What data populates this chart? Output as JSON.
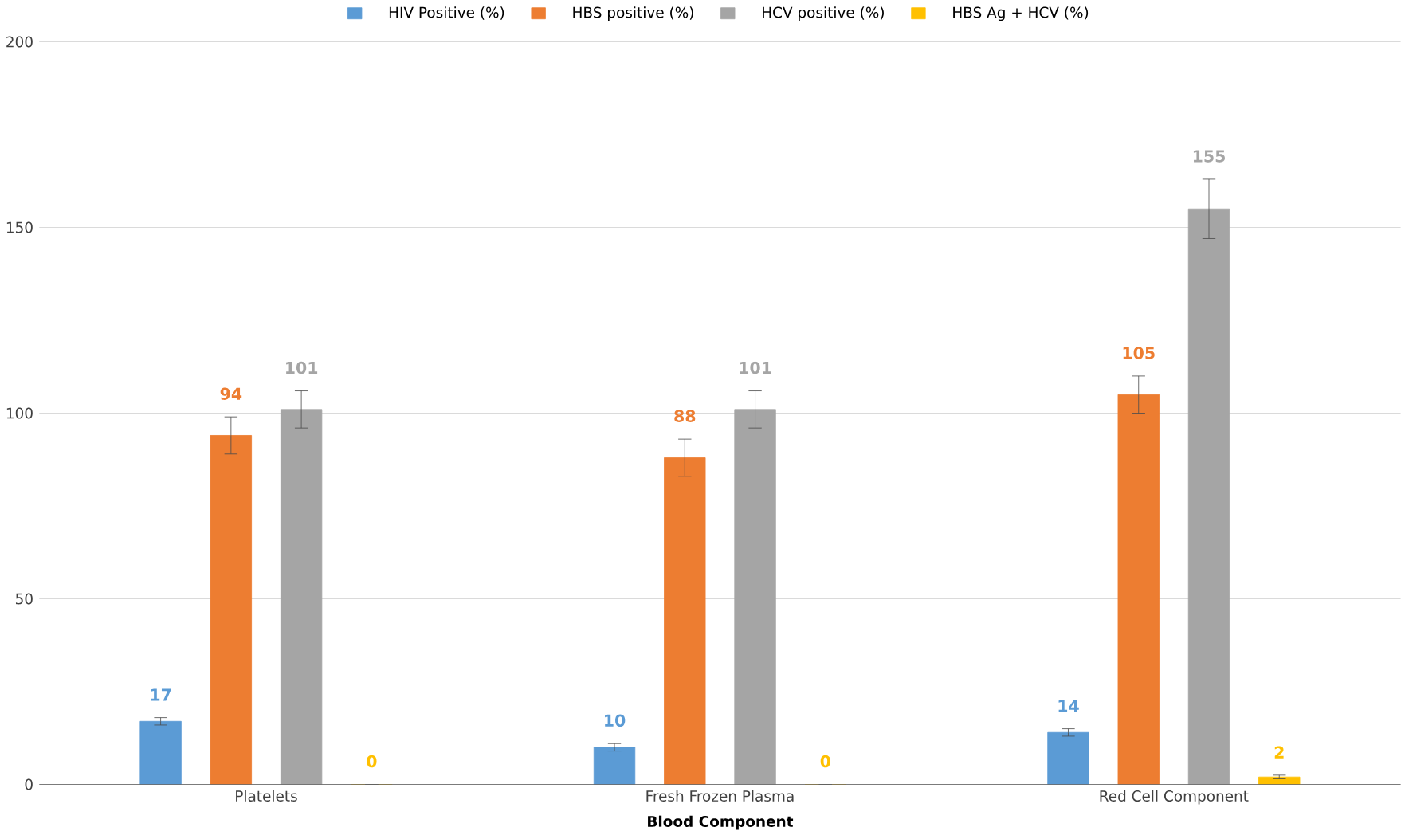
{
  "chart_data": {
    "type": "bar",
    "xlabel": "Blood Component",
    "categories": [
      "Platelets",
      "Fresh Frozen Plasma",
      "Red Cell Component"
    ],
    "series": [
      {
        "name": "HIV Positive (%)",
        "color": "#5b9bd5",
        "values": [
          17,
          10,
          14
        ],
        "errors": [
          1,
          1,
          1
        ]
      },
      {
        "name": "HBS positive (%)",
        "color": "#ed7d31",
        "values": [
          94,
          88,
          105
        ],
        "errors": [
          5,
          5,
          5
        ]
      },
      {
        "name": "HCV positive (%)",
        "color": "#a5a5a5",
        "values": [
          101,
          101,
          155
        ],
        "errors": [
          5,
          5,
          8
        ]
      },
      {
        "name": "HBS Ag + HCV (%)",
        "color": "#ffc000",
        "values": [
          0,
          0,
          2
        ],
        "errors": [
          null,
          null,
          0.5
        ]
      }
    ],
    "ylim": [
      0,
      200
    ],
    "yticks": [
      0,
      50,
      100,
      150,
      200
    ],
    "grid": "y",
    "legend": "top",
    "data_labels": true
  }
}
